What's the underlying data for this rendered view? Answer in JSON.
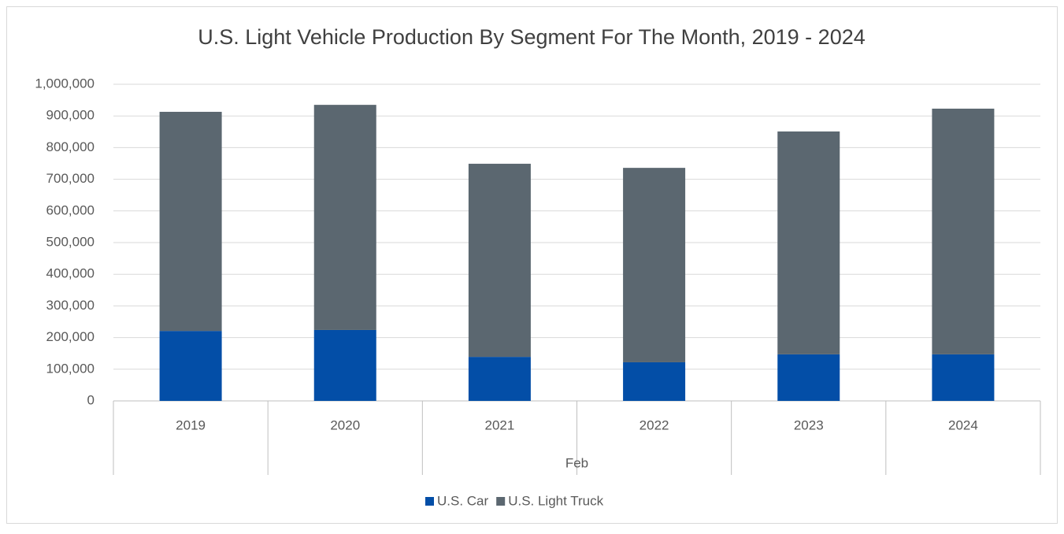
{
  "chart_data": {
    "type": "stacked_bar",
    "title": "U.S. Light Vehicle Production By Segment For The Month, 2019 - 2024",
    "categories": [
      "2019",
      "2020",
      "2021",
      "2022",
      "2023",
      "2024"
    ],
    "group_label": "Feb",
    "series": [
      {
        "name": "U.S. Car",
        "color": "#034ea7",
        "values": [
          221000,
          224000,
          139000,
          122000,
          147000,
          147000
        ]
      },
      {
        "name": "U.S. Light Truck",
        "color": "#5b6770",
        "values": [
          692000,
          711000,
          610000,
          614000,
          704000,
          776000
        ]
      }
    ],
    "ylim": [
      0,
      1000000
    ],
    "yticks": [
      0,
      {
        "value": 100000,
        "label": "100,000"
      },
      {
        "value": 200000,
        "label": "200,000"
      },
      {
        "value": 300000,
        "label": "300,000"
      },
      {
        "value": 400000,
        "label": "400,000"
      },
      {
        "value": 500000,
        "label": "500,000"
      },
      {
        "value": 600000,
        "label": "600,000"
      },
      {
        "value": 700000,
        "label": "700,000"
      },
      {
        "value": 800000,
        "label": "800,000"
      },
      {
        "value": 900000,
        "label": "900,000"
      },
      {
        "value": 1000000,
        "label": "1,000,000"
      }
    ],
    "grid": true,
    "legend": "bottom"
  }
}
